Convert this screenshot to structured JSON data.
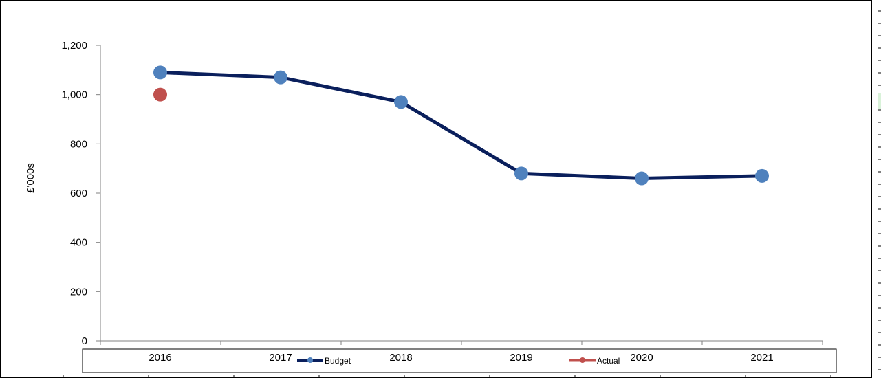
{
  "chart_data": {
    "type": "line",
    "title": "",
    "xlabel": "",
    "ylabel": "£'000s",
    "categories": [
      "2016",
      "2017",
      "2018",
      "2019",
      "2020",
      "2021"
    ],
    "ylim": [
      0,
      1200
    ],
    "yticks": [
      0,
      200,
      400,
      600,
      800,
      1000,
      1200
    ],
    "ytick_labels": [
      "0",
      "200",
      "400",
      "600",
      "800",
      "1,000",
      "1,200"
    ],
    "grid": false,
    "legend_position": "bottom",
    "series": [
      {
        "name": "Budget",
        "values": [
          1090,
          1070,
          970,
          680,
          660,
          670
        ],
        "color": "#0a1f5c",
        "marker_color": "#4f81bd",
        "style": "line-with-markers"
      },
      {
        "name": "Actual",
        "values": [
          1000,
          null,
          null,
          null,
          null,
          null
        ],
        "color": "#c0504d",
        "marker_color": "#c0504d",
        "style": "line-with-markers"
      }
    ]
  }
}
